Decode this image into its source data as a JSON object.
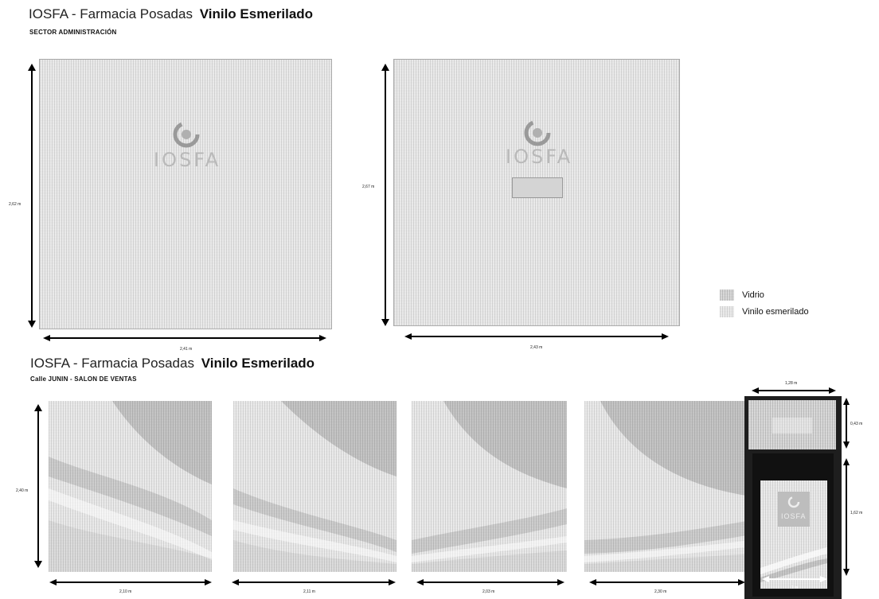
{
  "section1": {
    "brand": "IOSFA - Farmacia Posadas",
    "product": "Vinilo Esmerilado",
    "subtitle": "SECTOR ADMINISTRACIÓN",
    "panels": [
      {
        "height_label": "2,62 m",
        "width_label": "2,41 m",
        "logo_text": "IOSFA"
      },
      {
        "height_label": "2,67 m",
        "width_label": "2,43 m",
        "logo_text": "IOSFA"
      }
    ]
  },
  "section2": {
    "brand": "IOSFA - Farmacia Posadas",
    "product": "Vinilo Esmerilado",
    "subtitle": "Calle JUNIN - SALON DE VENTAS",
    "panels": [
      {
        "height_label": "2,40 m",
        "width_label": "2,10 m"
      },
      {
        "width_label": "2,11 m"
      },
      {
        "width_label": "2,03 m"
      },
      {
        "width_label": "2,30 m"
      }
    ],
    "door": {
      "top_width_label": "1,28 m",
      "top_height_label": "0,43 m",
      "lower_height_label": "1,62 m",
      "lower_width_label": "1 m",
      "logo_text": "IOSFA"
    }
  },
  "legend": [
    {
      "label": "Vidrio",
      "color": "#c8c8c8"
    },
    {
      "label": "Vinilo esmerilado",
      "color": "#e6e6e6"
    }
  ]
}
